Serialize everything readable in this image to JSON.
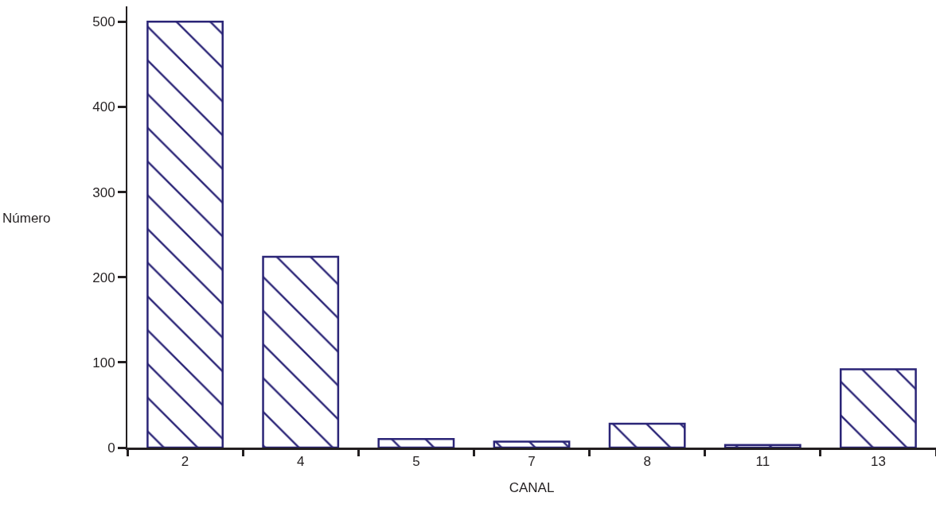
{
  "chart_data": {
    "type": "bar",
    "xlabel": "CANAL",
    "ylabel": "Número",
    "categories": [
      "2",
      "4",
      "5",
      "7",
      "8",
      "11",
      "13"
    ],
    "values": [
      500,
      224,
      10,
      7,
      28,
      3,
      92
    ],
    "color": "#2b2577",
    "ylim": [
      0,
      518
    ],
    "yticks": [
      0,
      100,
      200,
      300,
      400,
      500
    ],
    "grid": false
  }
}
